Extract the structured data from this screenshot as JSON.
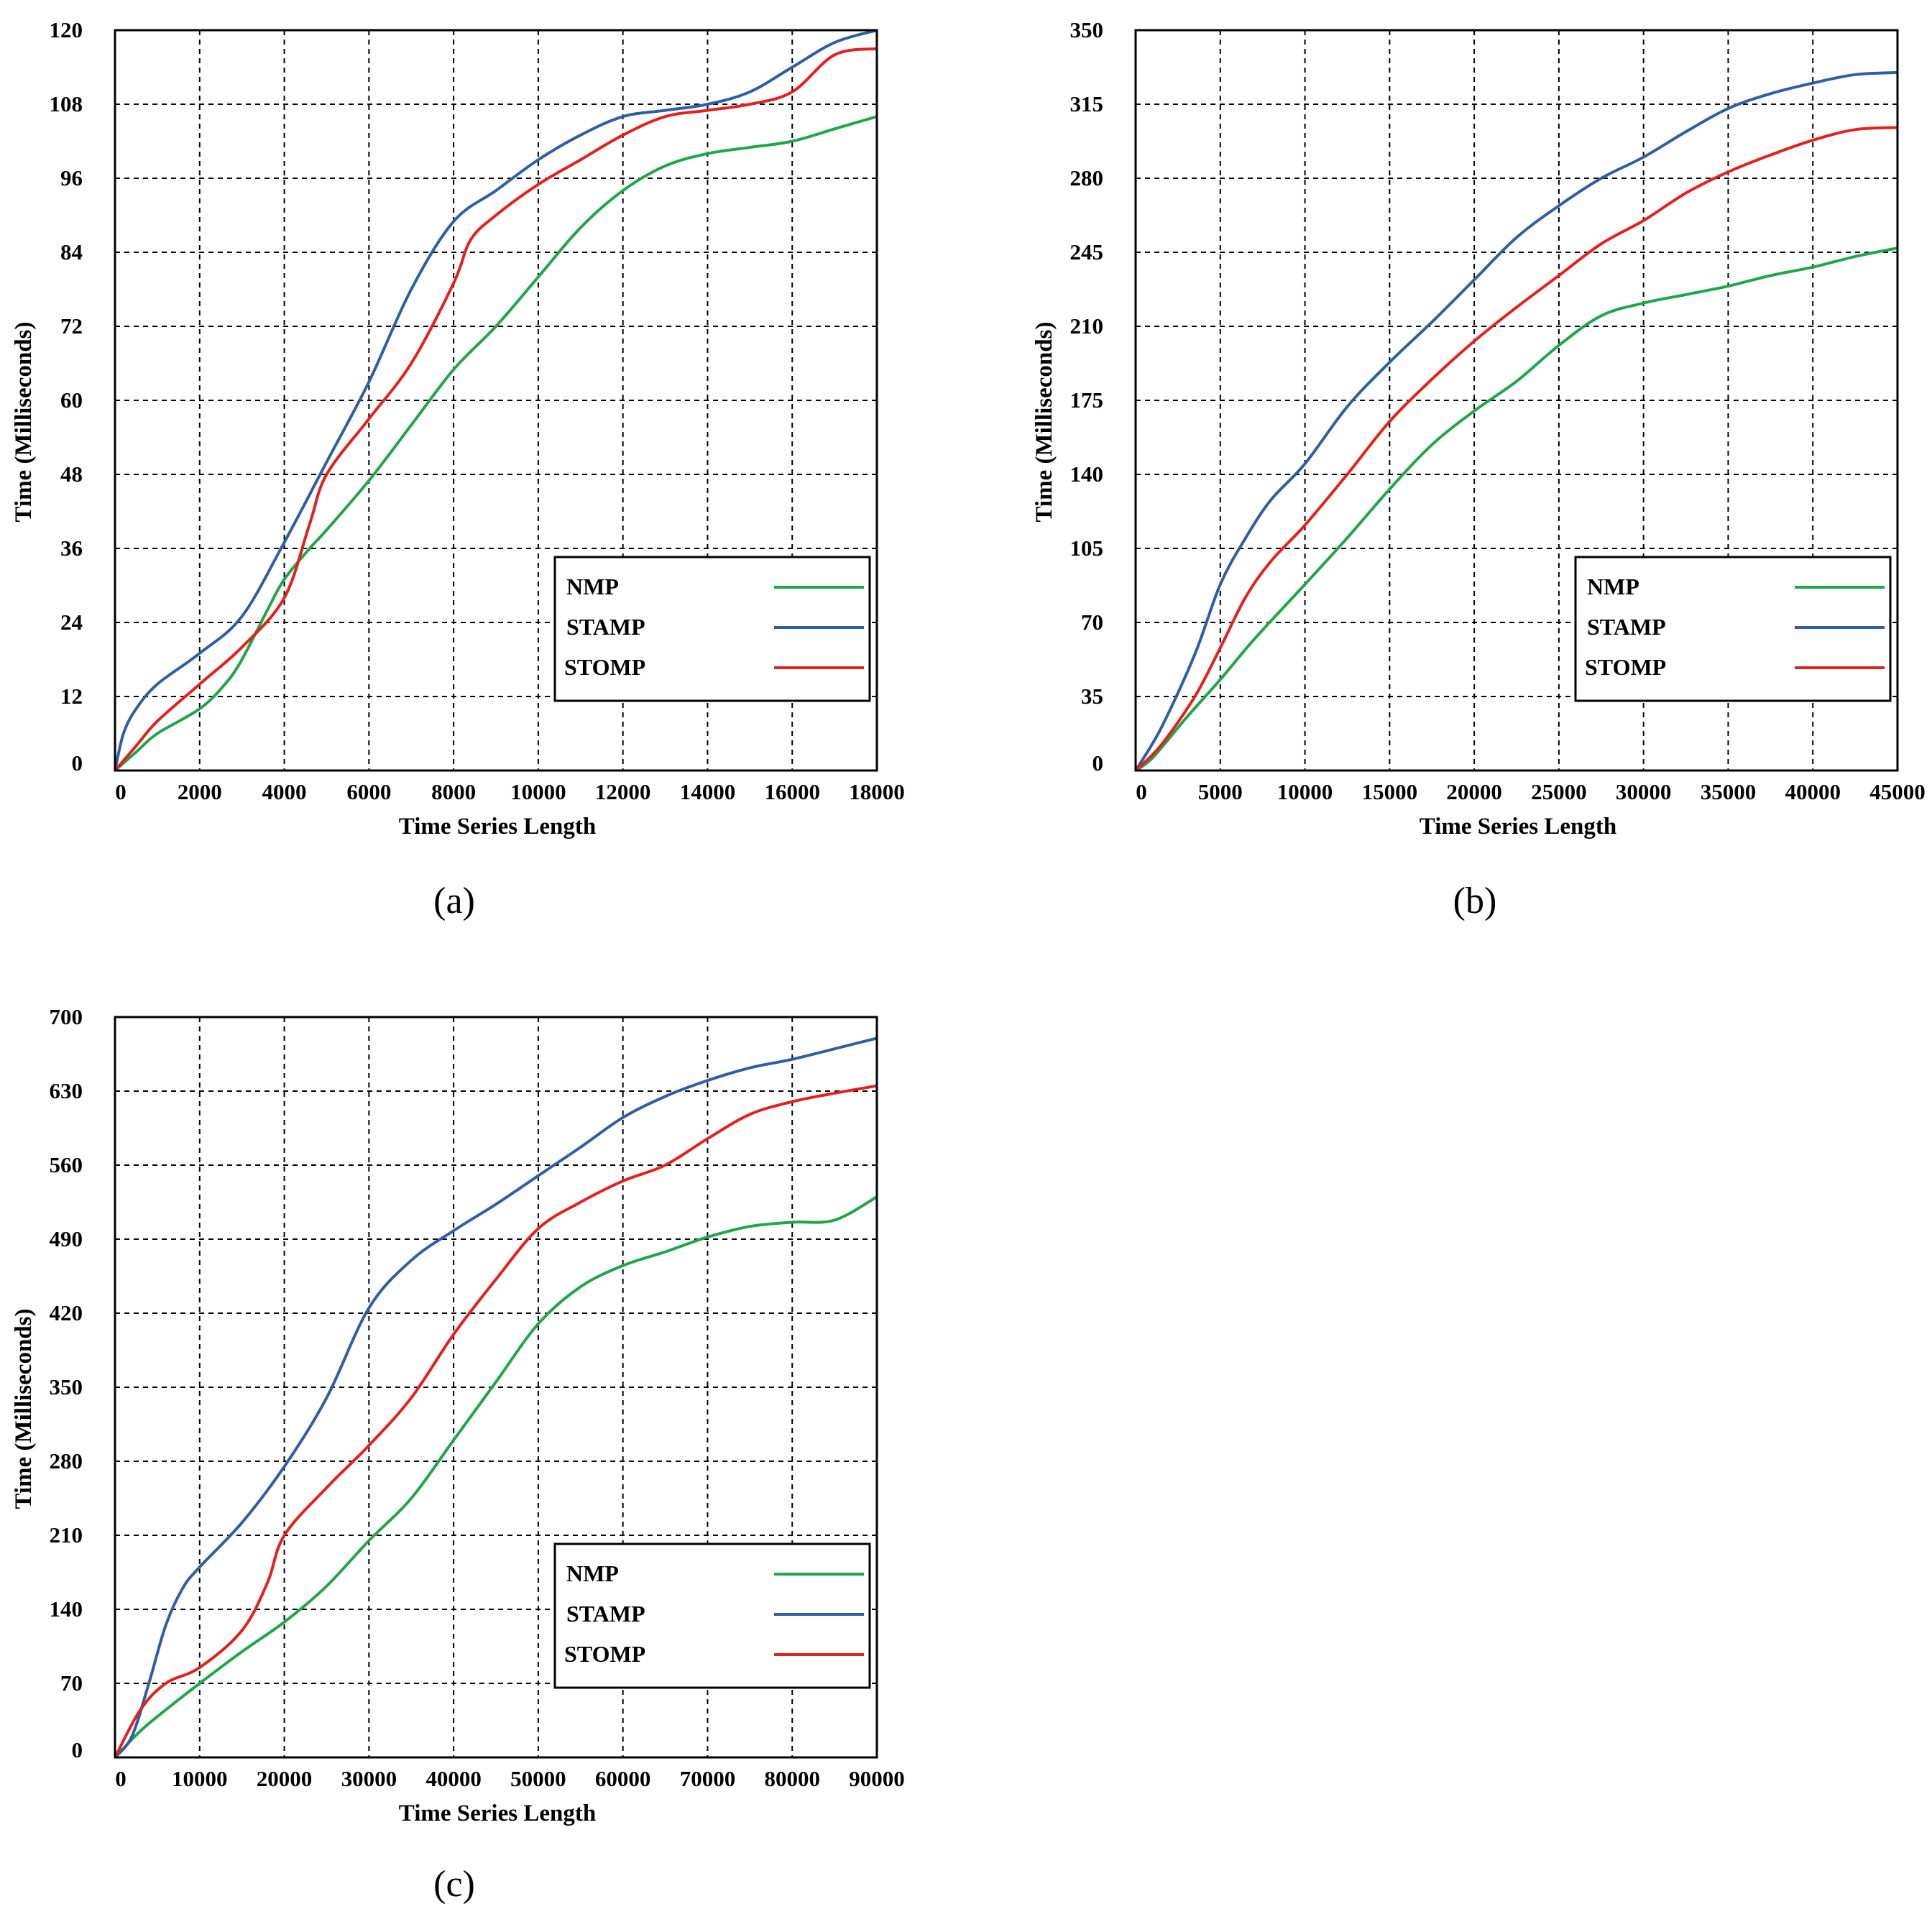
{
  "chart_data": [
    {
      "type": "line",
      "caption": "(a)",
      "xlabel": "Time Series Length",
      "ylabel": "Time (Milliseconds)",
      "xlim": [
        0,
        18000
      ],
      "ylim": [
        0,
        120
      ],
      "xticks": [
        0,
        2000,
        4000,
        6000,
        8000,
        10000,
        12000,
        14000,
        16000,
        18000
      ],
      "yticks": [
        0,
        12,
        24,
        36,
        48,
        60,
        72,
        84,
        96,
        108,
        120
      ],
      "grid": true,
      "legend_position": "lower-right",
      "colors": {
        "NMP": "#1fa64a",
        "STAMP": "#2e5ea4",
        "STOMP": "#e3211c"
      },
      "series": [
        {
          "name": "NMP",
          "points": [
            [
              0,
              0
            ],
            [
              500,
              3
            ],
            [
              1000,
              6
            ],
            [
              2000,
              10
            ],
            [
              2600,
              14
            ],
            [
              3000,
              18
            ],
            [
              3600,
              26
            ],
            [
              4000,
              31
            ],
            [
              4600,
              36
            ],
            [
              5000,
              39
            ],
            [
              6000,
              47
            ],
            [
              7000,
              56
            ],
            [
              8000,
              65
            ],
            [
              9000,
              72
            ],
            [
              10000,
              80
            ],
            [
              11000,
              88
            ],
            [
              12000,
              94
            ],
            [
              13000,
              98
            ],
            [
              14000,
              100
            ],
            [
              15000,
              101
            ],
            [
              16000,
              102
            ],
            [
              17000,
              104
            ],
            [
              18000,
              106
            ]
          ]
        },
        {
          "name": "STAMP",
          "points": [
            [
              0,
              0
            ],
            [
              200,
              6
            ],
            [
              500,
              10
            ],
            [
              1000,
              14
            ],
            [
              2000,
              19
            ],
            [
              3000,
              25
            ],
            [
              4000,
              37
            ],
            [
              5000,
              50
            ],
            [
              6000,
              63
            ],
            [
              7000,
              78
            ],
            [
              8000,
              89
            ],
            [
              9000,
              94
            ],
            [
              10000,
              99
            ],
            [
              11000,
              103
            ],
            [
              12000,
              106
            ],
            [
              13000,
              107
            ],
            [
              14000,
              108
            ],
            [
              15000,
              110
            ],
            [
              16000,
              114
            ],
            [
              17000,
              118
            ],
            [
              18000,
              120
            ]
          ]
        },
        {
          "name": "STOMP",
          "points": [
            [
              0,
              0
            ],
            [
              500,
              4
            ],
            [
              1000,
              8
            ],
            [
              2000,
              14
            ],
            [
              3000,
              20
            ],
            [
              4000,
              28
            ],
            [
              4600,
              40
            ],
            [
              5000,
              48
            ],
            [
              6000,
              57
            ],
            [
              7000,
              66
            ],
            [
              8000,
              79
            ],
            [
              8400,
              86
            ],
            [
              9000,
              90
            ],
            [
              10000,
              95
            ],
            [
              11000,
              99
            ],
            [
              12000,
              103
            ],
            [
              13000,
              106
            ],
            [
              14000,
              107
            ],
            [
              15000,
              108
            ],
            [
              16000,
              110
            ],
            [
              17000,
              116
            ],
            [
              18000,
              117
            ]
          ]
        }
      ]
    },
    {
      "type": "line",
      "caption": "(b)",
      "xlabel": "Time Series Length",
      "ylabel": "Time (Milliseconds)",
      "xlim": [
        0,
        45000
      ],
      "ylim": [
        0,
        350
      ],
      "xticks": [
        0,
        5000,
        10000,
        15000,
        20000,
        25000,
        30000,
        35000,
        40000,
        45000
      ],
      "yticks": [
        0,
        35,
        70,
        105,
        140,
        175,
        210,
        245,
        280,
        315,
        350
      ],
      "grid": true,
      "legend_position": "lower-right",
      "colors": {
        "NMP": "#1fa64a",
        "STAMP": "#2e5ea4",
        "STOMP": "#e3211c"
      },
      "series": [
        {
          "name": "NMP",
          "points": [
            [
              0,
              0
            ],
            [
              1000,
              6
            ],
            [
              3000,
              25
            ],
            [
              5000,
              43
            ],
            [
              7000,
              62
            ],
            [
              10000,
              88
            ],
            [
              12500,
              110
            ],
            [
              15000,
              133
            ],
            [
              17500,
              154
            ],
            [
              20000,
              170
            ],
            [
              22500,
              184
            ],
            [
              25000,
              201
            ],
            [
              27500,
              215
            ],
            [
              30000,
              221
            ],
            [
              32500,
              225
            ],
            [
              35000,
              229
            ],
            [
              37500,
              234
            ],
            [
              40000,
              238
            ],
            [
              42500,
              243
            ],
            [
              45000,
              247
            ]
          ]
        },
        {
          "name": "STAMP",
          "points": [
            [
              0,
              0
            ],
            [
              1500,
              20
            ],
            [
              3500,
              55
            ],
            [
              5000,
              88
            ],
            [
              6500,
              110
            ],
            [
              8000,
              128
            ],
            [
              10000,
              145
            ],
            [
              12500,
              172
            ],
            [
              15000,
              193
            ],
            [
              17500,
              212
            ],
            [
              20000,
              232
            ],
            [
              22500,
              252
            ],
            [
              25000,
              267
            ],
            [
              27500,
              280
            ],
            [
              30000,
              290
            ],
            [
              32500,
              302
            ],
            [
              35000,
              313
            ],
            [
              37500,
              320
            ],
            [
              40000,
              325
            ],
            [
              42500,
              329
            ],
            [
              45000,
              330
            ]
          ]
        },
        {
          "name": "STOMP",
          "points": [
            [
              0,
              0
            ],
            [
              1500,
              12
            ],
            [
              3500,
              35
            ],
            [
              5000,
              58
            ],
            [
              6500,
              82
            ],
            [
              8000,
              99
            ],
            [
              10000,
              116
            ],
            [
              12500,
              140
            ],
            [
              15000,
              165
            ],
            [
              17500,
              185
            ],
            [
              20000,
              203
            ],
            [
              22500,
              219
            ],
            [
              25000,
              234
            ],
            [
              27500,
              249
            ],
            [
              30000,
              260
            ],
            [
              32500,
              273
            ],
            [
              35000,
              283
            ],
            [
              37500,
              291
            ],
            [
              40000,
              298
            ],
            [
              42500,
              303
            ],
            [
              45000,
              304
            ]
          ]
        }
      ]
    },
    {
      "type": "line",
      "caption": "(c)",
      "xlabel": "Time Series Length",
      "ylabel": "Time (Milliseconds)",
      "xlim": [
        0,
        90000
      ],
      "ylim": [
        0,
        700
      ],
      "xticks": [
        0,
        10000,
        20000,
        30000,
        40000,
        50000,
        60000,
        70000,
        80000,
        90000
      ],
      "yticks": [
        0,
        70,
        140,
        210,
        280,
        350,
        420,
        490,
        560,
        630,
        700
      ],
      "grid": true,
      "legend_position": "lower-right",
      "colors": {
        "NMP": "#1fa64a",
        "STAMP": "#2e5ea4",
        "STOMP": "#e3211c"
      },
      "series": [
        {
          "name": "NMP",
          "points": [
            [
              0,
              0
            ],
            [
              3000,
              25
            ],
            [
              6000,
              45
            ],
            [
              10000,
              70
            ],
            [
              15000,
              100
            ],
            [
              20000,
              128
            ],
            [
              25000,
              162
            ],
            [
              30000,
              205
            ],
            [
              35000,
              245
            ],
            [
              40000,
              300
            ],
            [
              45000,
              355
            ],
            [
              50000,
              410
            ],
            [
              55000,
              445
            ],
            [
              60000,
              465
            ],
            [
              65000,
              478
            ],
            [
              70000,
              492
            ],
            [
              75000,
              502
            ],
            [
              80000,
              506
            ],
            [
              85000,
              508
            ],
            [
              90000,
              530
            ]
          ]
        },
        {
          "name": "STAMP",
          "points": [
            [
              0,
              0
            ],
            [
              2000,
              20
            ],
            [
              4000,
              70
            ],
            [
              6000,
              125
            ],
            [
              8000,
              160
            ],
            [
              10000,
              180
            ],
            [
              15000,
              222
            ],
            [
              20000,
              275
            ],
            [
              25000,
              340
            ],
            [
              30000,
              425
            ],
            [
              35000,
              470
            ],
            [
              40000,
              498
            ],
            [
              45000,
              523
            ],
            [
              50000,
              550
            ],
            [
              55000,
              577
            ],
            [
              60000,
              605
            ],
            [
              65000,
              625
            ],
            [
              70000,
              640
            ],
            [
              75000,
              652
            ],
            [
              80000,
              660
            ],
            [
              85000,
              670
            ],
            [
              90000,
              680
            ]
          ]
        },
        {
          "name": "STOMP",
          "points": [
            [
              0,
              0
            ],
            [
              3000,
              45
            ],
            [
              6000,
              70
            ],
            [
              10000,
              85
            ],
            [
              15000,
              120
            ],
            [
              18000,
              165
            ],
            [
              20000,
              210
            ],
            [
              25000,
              255
            ],
            [
              30000,
              295
            ],
            [
              35000,
              340
            ],
            [
              40000,
              400
            ],
            [
              45000,
              452
            ],
            [
              50000,
              500
            ],
            [
              55000,
              525
            ],
            [
              60000,
              545
            ],
            [
              65000,
              560
            ],
            [
              70000,
              585
            ],
            [
              75000,
              608
            ],
            [
              80000,
              620
            ],
            [
              85000,
              628
            ],
            [
              90000,
              635
            ]
          ]
        }
      ]
    }
  ]
}
